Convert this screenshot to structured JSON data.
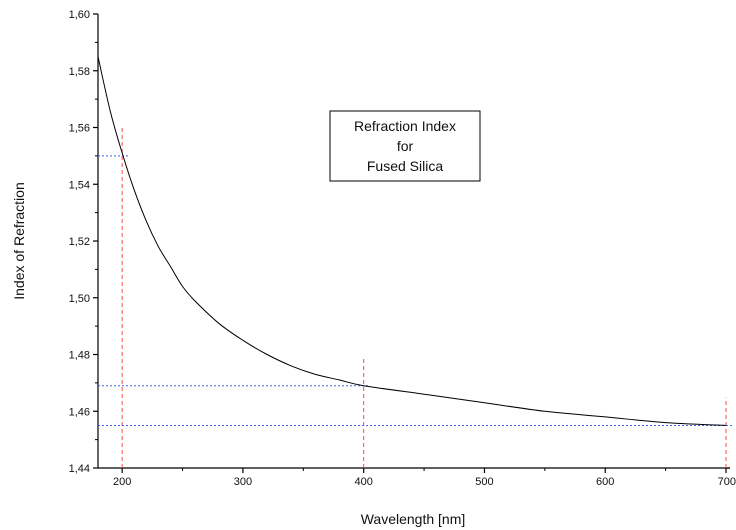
{
  "chart_data": {
    "type": "line",
    "xlabel": "Wavelength [nm]",
    "ylabel": "Index of Refraction",
    "xlim": [
      180,
      700
    ],
    "ylim": [
      1.44,
      1.6
    ],
    "x_ticks": [
      {
        "value": 200,
        "label": "200"
      },
      {
        "value": 300,
        "label": "300"
      },
      {
        "value": 400,
        "label": "400"
      },
      {
        "value": 500,
        "label": "500"
      },
      {
        "value": 600,
        "label": "600"
      },
      {
        "value": 700,
        "label": "700"
      }
    ],
    "y_ticks": [
      {
        "value": 1.44,
        "label": "1,44"
      },
      {
        "value": 1.46,
        "label": "1,46"
      },
      {
        "value": 1.48,
        "label": "1,48"
      },
      {
        "value": 1.5,
        "label": "1,50"
      },
      {
        "value": 1.52,
        "label": "1,52"
      },
      {
        "value": 1.54,
        "label": "1,54"
      },
      {
        "value": 1.56,
        "label": "1,56"
      },
      {
        "value": 1.58,
        "label": "1,58"
      },
      {
        "value": 1.6,
        "label": "1,60"
      }
    ],
    "annotation_lines": [
      "Refraction Index",
      "for",
      "Fused Silica"
    ],
    "series": [
      {
        "x": [
          180,
          190,
          200,
          210,
          220,
          230,
          240,
          250,
          260,
          280,
          300,
          320,
          340,
          360,
          380,
          400,
          450,
          500,
          550,
          600,
          650,
          700
        ],
        "y": [
          1.585,
          1.566,
          1.551,
          1.538,
          1.527,
          1.518,
          1.511,
          1.504,
          1.499,
          1.491,
          1.485,
          1.48,
          1.476,
          1.473,
          1.471,
          1.469,
          1.466,
          1.463,
          1.46,
          1.458,
          1.456,
          1.455
        ],
        "color": "#000000"
      }
    ],
    "reference_points": [
      {
        "x": 200,
        "y": 1.55
      },
      {
        "x": 400,
        "y": 1.469
      },
      {
        "x": 700,
        "y": 1.455
      }
    ],
    "reference_colors": {
      "vertical": "#ff4a4a",
      "horizontal": "#3f63e0"
    }
  }
}
